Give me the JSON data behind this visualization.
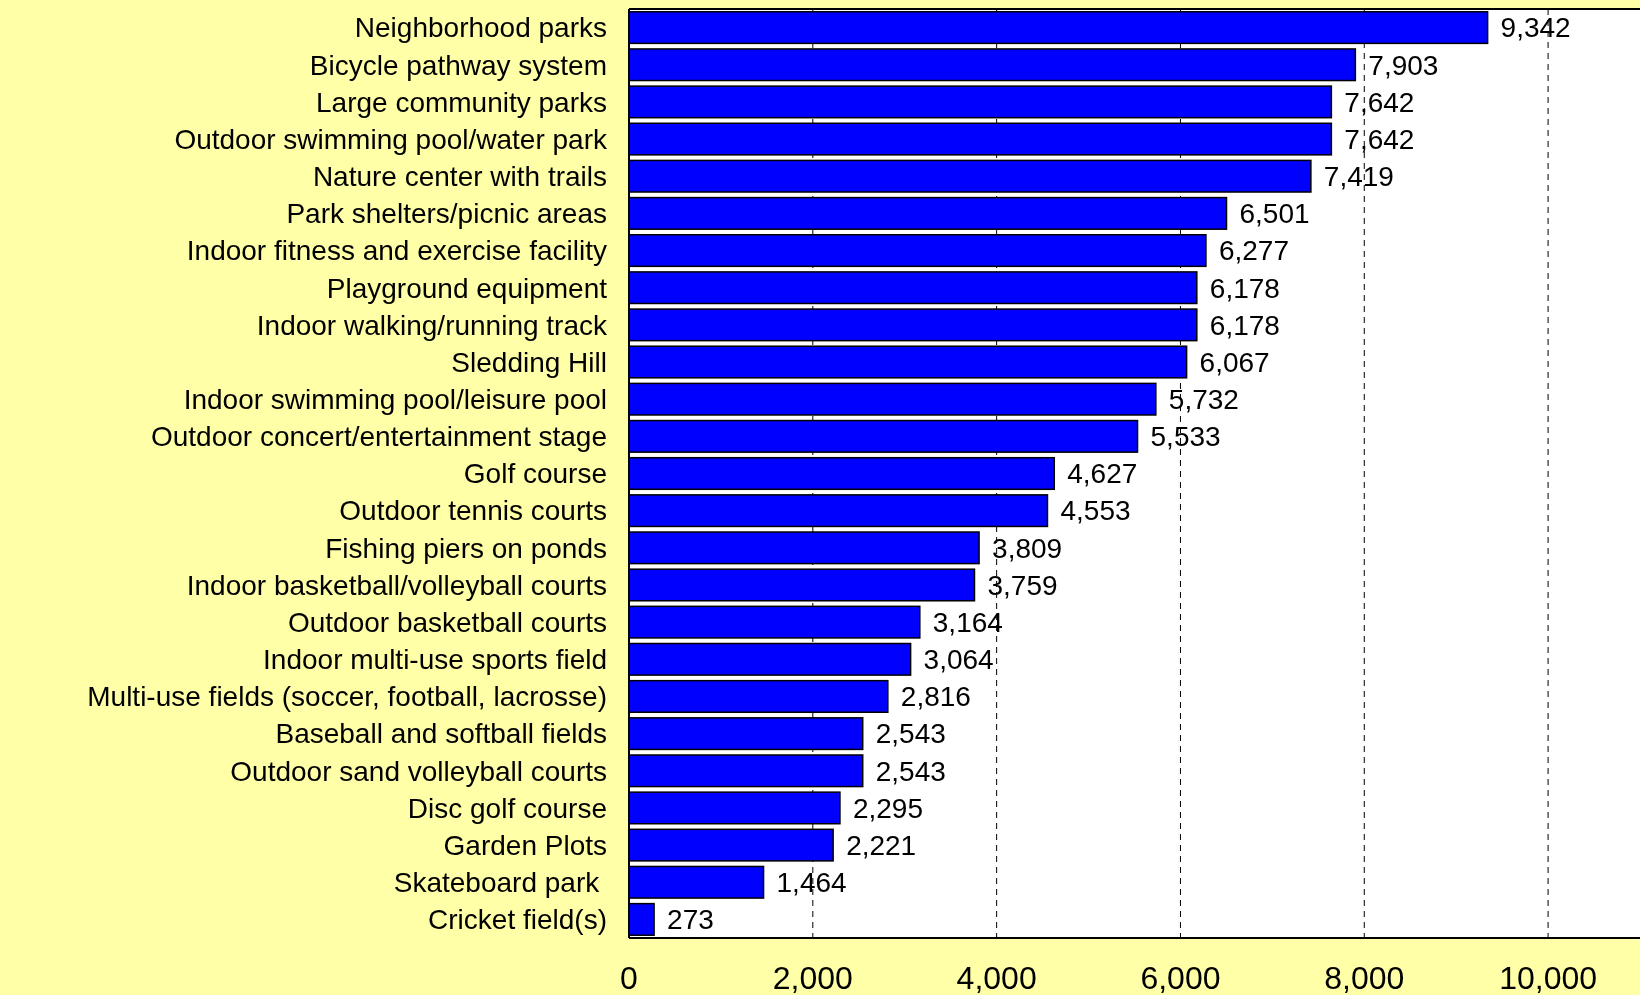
{
  "chart_data": {
    "type": "bar",
    "orientation": "horizontal",
    "categories": [
      "Neighborhood parks",
      "Bicycle pathway system",
      "Large community parks",
      "Outdoor swimming pool/water park",
      "Nature center with trails",
      "Park shelters/picnic areas",
      "Indoor fitness and exercise facility",
      "Playground equipment",
      "Indoor walking/running track",
      "Sledding Hill",
      "Indoor swimming pool/leisure pool",
      "Outdoor concert/entertainment stage",
      "Golf course",
      "Outdoor tennis courts",
      "Fishing piers on ponds",
      "Indoor basketball/volleyball courts",
      "Outdoor basketball courts",
      "Indoor multi-use sports field",
      "Multi-use fields (soccer, football, lacrosse)",
      "Baseball and softball fields",
      "Outdoor sand volleyball courts",
      "Disc golf course",
      "Garden Plots",
      "Skateboard park ",
      "Cricket field(s)"
    ],
    "values": [
      9342,
      7903,
      7642,
      7642,
      7419,
      6501,
      6277,
      6178,
      6178,
      6067,
      5732,
      5533,
      4627,
      4553,
      3809,
      3759,
      3164,
      3064,
      2816,
      2543,
      2543,
      2295,
      2221,
      1464,
      273
    ],
    "value_labels": [
      "9,342",
      "7,903",
      "7,642",
      "7,642",
      "7,419",
      "6,501",
      "6,277",
      "6,178",
      "6,178",
      "6,067",
      "5,732",
      "5,533",
      "4,627",
      "4,553",
      "3,809",
      "3,759",
      "3,164",
      "3,064",
      "2,816",
      "2,543",
      "2,543",
      "2,295",
      "2,221",
      "1,464",
      "273"
    ],
    "color": "#0000ff",
    "xlim": [
      0,
      11000
    ],
    "xticks": [
      0,
      {
        "value": 2000,
        "label": "2,000"
      },
      {
        "value": 4000,
        "label": "4,000"
      },
      {
        "value": 6000,
        "label": "6,000"
      },
      {
        "value": 8000,
        "label": "8,000"
      },
      {
        "value": 10000,
        "label": "10,000"
      }
    ],
    "grid": "x"
  }
}
